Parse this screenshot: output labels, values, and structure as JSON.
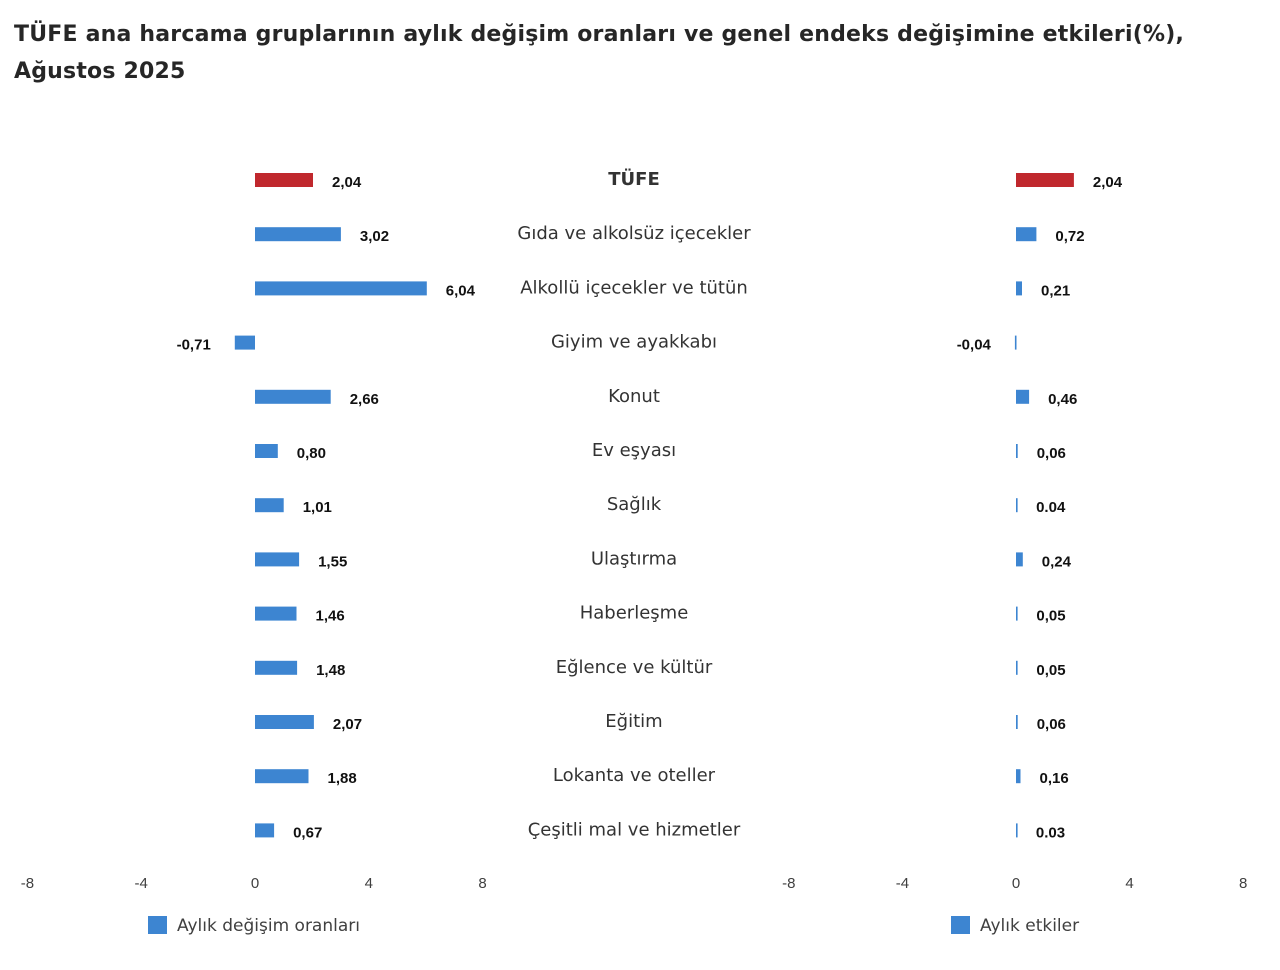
{
  "colors": {
    "highlight": "#c0282d",
    "bar": "#3d85d1",
    "bar_edge": "#2b6cb0"
  },
  "chart_data": {
    "type": "bar",
    "orientation": "horizontal",
    "title": "TÜFE ana harcama gruplarının aylık değişim oranları ve genel endeks değişimine etkileri(%), Ağustos 2025",
    "categories": [
      "TÜFE",
      "Gıda ve alkolsüz içecekler",
      "Alkollü içecekler ve tütün",
      "Giyim ve ayakkabı",
      "Konut",
      "Ev eşyası",
      "Sağlık",
      "Ulaştırma",
      "Haberleşme",
      "Eğlence ve kültür",
      "Eğitim",
      "Lokanta ve oteller",
      "Çeşitli mal ve hizmetler"
    ],
    "highlight_index": 0,
    "xlim": [
      -8,
      8
    ],
    "xticks": [
      -8,
      -4,
      0,
      4,
      8
    ],
    "tick_labels": [
      "-8",
      "-4",
      "0",
      "4",
      "8"
    ],
    "legend_position": "bottom-left",
    "grid": false,
    "series": [
      {
        "name": "Aylık değişim oranları",
        "values": [
          2.04,
          3.02,
          6.04,
          -0.71,
          2.66,
          0.8,
          1.01,
          1.55,
          1.46,
          1.48,
          2.07,
          1.88,
          0.67
        ],
        "labels": [
          "2,04",
          "3,02",
          "6,04",
          "-0,71",
          "2,66",
          "0,80",
          "1,01",
          "1,55",
          "1,46",
          "1,48",
          "2,07",
          "1,88",
          "0,67"
        ]
      },
      {
        "name": "Aylık etkiler",
        "values": [
          2.04,
          0.72,
          0.21,
          -0.04,
          0.46,
          0.06,
          0.04,
          0.24,
          0.05,
          0.05,
          0.06,
          0.16,
          0.03
        ],
        "labels": [
          "2,04",
          "0,72",
          "0,21",
          "-0,04",
          "0,46",
          "0,06",
          "0.04",
          "0,24",
          "0,05",
          "0,05",
          "0,06",
          "0,16",
          "0.03"
        ]
      }
    ]
  }
}
